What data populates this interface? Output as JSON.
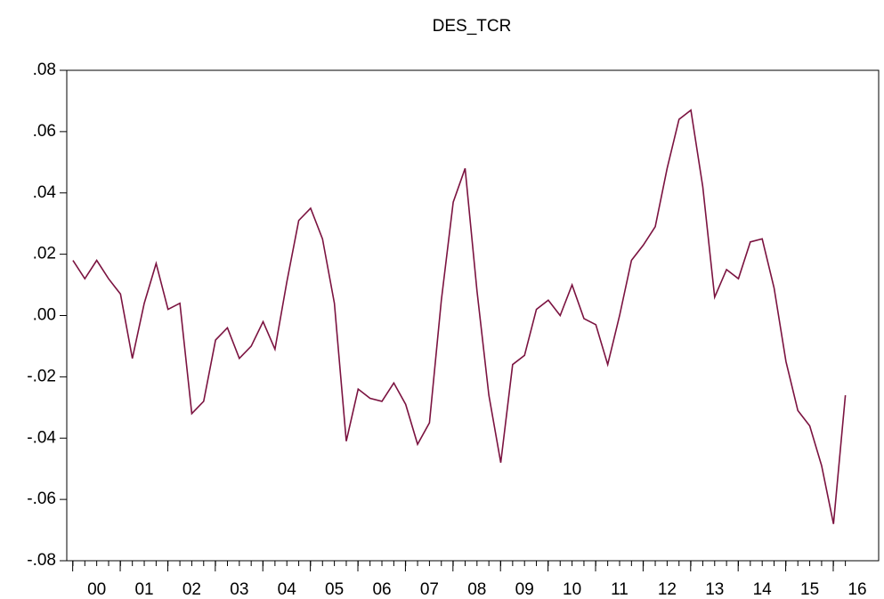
{
  "chart_data": {
    "type": "line",
    "title": "DES_TCR",
    "x": [
      2000,
      2000.25,
      2000.5,
      2000.75,
      2001,
      2001.25,
      2001.5,
      2001.75,
      2002,
      2002.25,
      2002.5,
      2002.75,
      2003,
      2003.25,
      2003.5,
      2003.75,
      2004,
      2004.25,
      2004.5,
      2004.75,
      2005,
      2005.25,
      2005.5,
      2005.75,
      2006,
      2006.25,
      2006.5,
      2006.75,
      2007,
      2007.25,
      2007.5,
      2007.75,
      2008,
      2008.25,
      2008.5,
      2008.75,
      2009,
      2009.25,
      2009.5,
      2009.75,
      2010,
      2010.25,
      2010.5,
      2010.75,
      2011,
      2011.25,
      2011.5,
      2011.75,
      2012,
      2012.25,
      2012.5,
      2012.75,
      2013,
      2013.25,
      2013.5,
      2013.75,
      2014,
      2014.25,
      2014.5,
      2014.75,
      2015,
      2015.25,
      2015.5,
      2015.75,
      2016,
      2016.25
    ],
    "series": [
      {
        "name": "DES_TCR",
        "color": "#7b1340",
        "values": [
          0.018,
          0.012,
          0.018,
          0.012,
          0.007,
          -0.014,
          0.004,
          0.017,
          0.002,
          0.004,
          -0.032,
          -0.028,
          -0.008,
          -0.004,
          -0.014,
          -0.01,
          -0.002,
          -0.011,
          0.011,
          0.031,
          0.035,
          0.025,
          0.004,
          -0.041,
          -0.024,
          -0.027,
          -0.028,
          -0.022,
          -0.029,
          -0.042,
          -0.035,
          0.005,
          0.037,
          0.048,
          0.008,
          -0.026,
          -0.048,
          -0.016,
          -0.013,
          0.002,
          0.005,
          0.0,
          0.01,
          -0.001,
          -0.003,
          -0.016,
          0.0,
          0.018,
          0.023,
          0.029,
          0.048,
          0.064,
          0.067,
          0.042,
          0.006,
          0.015,
          0.012,
          0.024,
          0.025,
          0.009,
          -0.015,
          -0.031,
          -0.036,
          -0.049,
          -0.068,
          -0.026
        ]
      }
    ],
    "xlim": [
      1999.87,
      2016.95
    ],
    "xticks": [
      {
        "value": 2000.5,
        "label": "00"
      },
      {
        "value": 2001.5,
        "label": "01"
      },
      {
        "value": 2002.5,
        "label": "02"
      },
      {
        "value": 2003.5,
        "label": "03"
      },
      {
        "value": 2004.5,
        "label": "04"
      },
      {
        "value": 2005.5,
        "label": "05"
      },
      {
        "value": 2006.5,
        "label": "06"
      },
      {
        "value": 2007.5,
        "label": "07"
      },
      {
        "value": 2008.5,
        "label": "08"
      },
      {
        "value": 2009.5,
        "label": "09"
      },
      {
        "value": 2010.5,
        "label": "10"
      },
      {
        "value": 2011.5,
        "label": "11"
      },
      {
        "value": 2012.5,
        "label": "12"
      },
      {
        "value": 2013.5,
        "label": "13"
      },
      {
        "value": 2014.5,
        "label": "14"
      },
      {
        "value": 2015.5,
        "label": "15"
      },
      {
        "value": 2016.5,
        "label": "16"
      }
    ],
    "ylim": [
      -0.08,
      0.08
    ],
    "yticks": [
      {
        "value": -0.08,
        "label": "-.08"
      },
      {
        "value": -0.06,
        "label": "-.06"
      },
      {
        "value": -0.04,
        "label": "-.04"
      },
      {
        "value": -0.02,
        "label": "-.02"
      },
      {
        "value": 0,
        "label": ".00"
      },
      {
        "value": 0.02,
        "label": ".02"
      },
      {
        "value": 0.04,
        "label": ".04"
      },
      {
        "value": 0.06,
        "label": ".06"
      },
      {
        "value": 0.08,
        "label": ".08"
      }
    ]
  }
}
